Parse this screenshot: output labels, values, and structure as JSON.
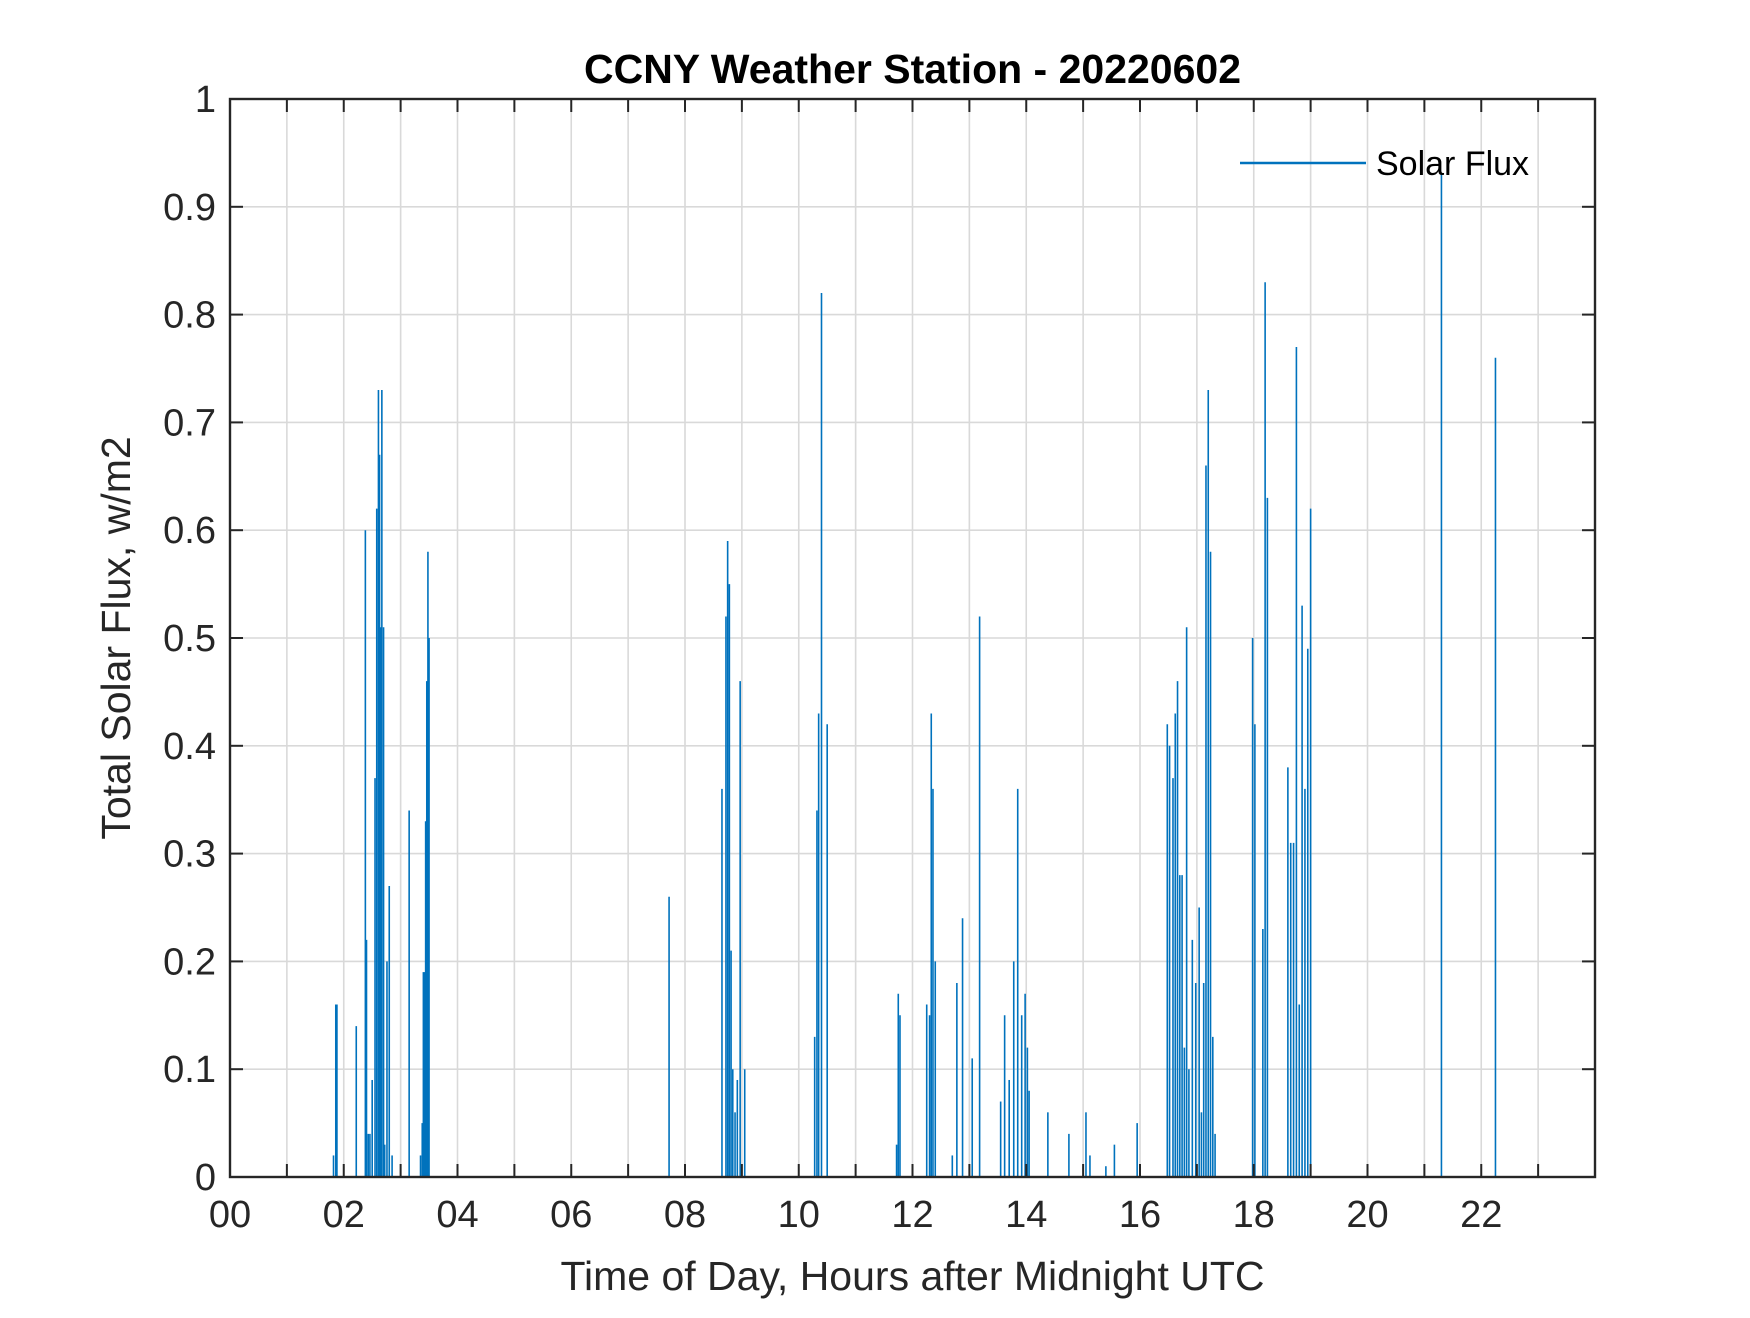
{
  "chart_data": {
    "type": "line",
    "title": "CCNY Weather Station - 20220602",
    "xlabel": "Time of Day, Hours after Midnight UTC",
    "ylabel": "Total Solar Flux, w/m2",
    "xlim": [
      0,
      24
    ],
    "ylim": [
      0,
      1
    ],
    "grid": true,
    "legend_position": "top-right",
    "x_ticks": [
      0,
      2,
      4,
      6,
      8,
      10,
      12,
      14,
      16,
      18,
      20,
      22
    ],
    "x_tick_labels": [
      "00",
      "02",
      "04",
      "06",
      "08",
      "10",
      "12",
      "14",
      "16",
      "18",
      "20",
      "22"
    ],
    "y_ticks": [
      0,
      0.1,
      0.2,
      0.3,
      0.4,
      0.5,
      0.6,
      0.7,
      0.8,
      0.9,
      1
    ],
    "y_tick_labels": [
      "0",
      "0.1",
      "0.2",
      "0.3",
      "0.4",
      "0.5",
      "0.6",
      "0.7",
      "0.8",
      "0.9",
      "1"
    ],
    "series": [
      {
        "name": "Solar Flux",
        "color": "#0072BD",
        "x": [
          1.82,
          1.86,
          1.88,
          2.22,
          2.38,
          2.4,
          2.43,
          2.46,
          2.5,
          2.55,
          2.58,
          2.61,
          2.63,
          2.65,
          2.67,
          2.7,
          2.72,
          2.76,
          2.8,
          2.85,
          3.15,
          3.35,
          3.38,
          3.4,
          3.42,
          3.44,
          3.46,
          3.48,
          3.5,
          7.72,
          8.65,
          8.72,
          8.75,
          8.78,
          8.81,
          8.84,
          8.88,
          8.92,
          8.97,
          9.05,
          10.28,
          10.32,
          10.35,
          10.4,
          10.5,
          11.72,
          11.75,
          11.78,
          12.25,
          12.3,
          12.33,
          12.36,
          12.4,
          12.7,
          12.78,
          12.88,
          13.05,
          13.18,
          13.55,
          13.62,
          13.7,
          13.78,
          13.85,
          13.92,
          13.98,
          14.02,
          14.05,
          14.38,
          14.75,
          15.05,
          15.12,
          15.4,
          15.55,
          15.95,
          16.48,
          16.52,
          16.58,
          16.62,
          16.66,
          16.7,
          16.74,
          16.78,
          16.82,
          16.86,
          16.92,
          16.98,
          17.04,
          17.08,
          17.12,
          17.16,
          17.2,
          17.24,
          17.28,
          17.32,
          17.98,
          18.02,
          18.16,
          18.2,
          18.24,
          18.6,
          18.65,
          18.7,
          18.75,
          18.8,
          18.85,
          18.9,
          18.95,
          19.0,
          21.3,
          22.25
        ],
        "values": [
          0.02,
          0.16,
          0.16,
          0.14,
          0.6,
          0.22,
          0.04,
          0.04,
          0.09,
          0.37,
          0.62,
          0.73,
          0.67,
          0.51,
          0.73,
          0.51,
          0.03,
          0.2,
          0.27,
          0.02,
          0.34,
          0.02,
          0.05,
          0.19,
          0.19,
          0.33,
          0.46,
          0.58,
          0.5,
          0.26,
          0.36,
          0.52,
          0.59,
          0.55,
          0.21,
          0.1,
          0.06,
          0.09,
          0.46,
          0.1,
          0.13,
          0.34,
          0.43,
          0.82,
          0.42,
          0.03,
          0.17,
          0.15,
          0.16,
          0.15,
          0.43,
          0.36,
          0.2,
          0.02,
          0.18,
          0.24,
          0.11,
          0.52,
          0.07,
          0.15,
          0.09,
          0.2,
          0.36,
          0.15,
          0.17,
          0.12,
          0.08,
          0.06,
          0.04,
          0.06,
          0.02,
          0.01,
          0.03,
          0.05,
          0.42,
          0.4,
          0.37,
          0.43,
          0.46,
          0.28,
          0.28,
          0.12,
          0.51,
          0.1,
          0.22,
          0.18,
          0.25,
          0.06,
          0.18,
          0.66,
          0.73,
          0.58,
          0.13,
          0.04,
          0.5,
          0.42,
          0.23,
          0.83,
          0.63,
          0.38,
          0.31,
          0.31,
          0.77,
          0.16,
          0.53,
          0.36,
          0.49,
          0.62,
          0.93,
          0.76
        ]
      }
    ]
  }
}
